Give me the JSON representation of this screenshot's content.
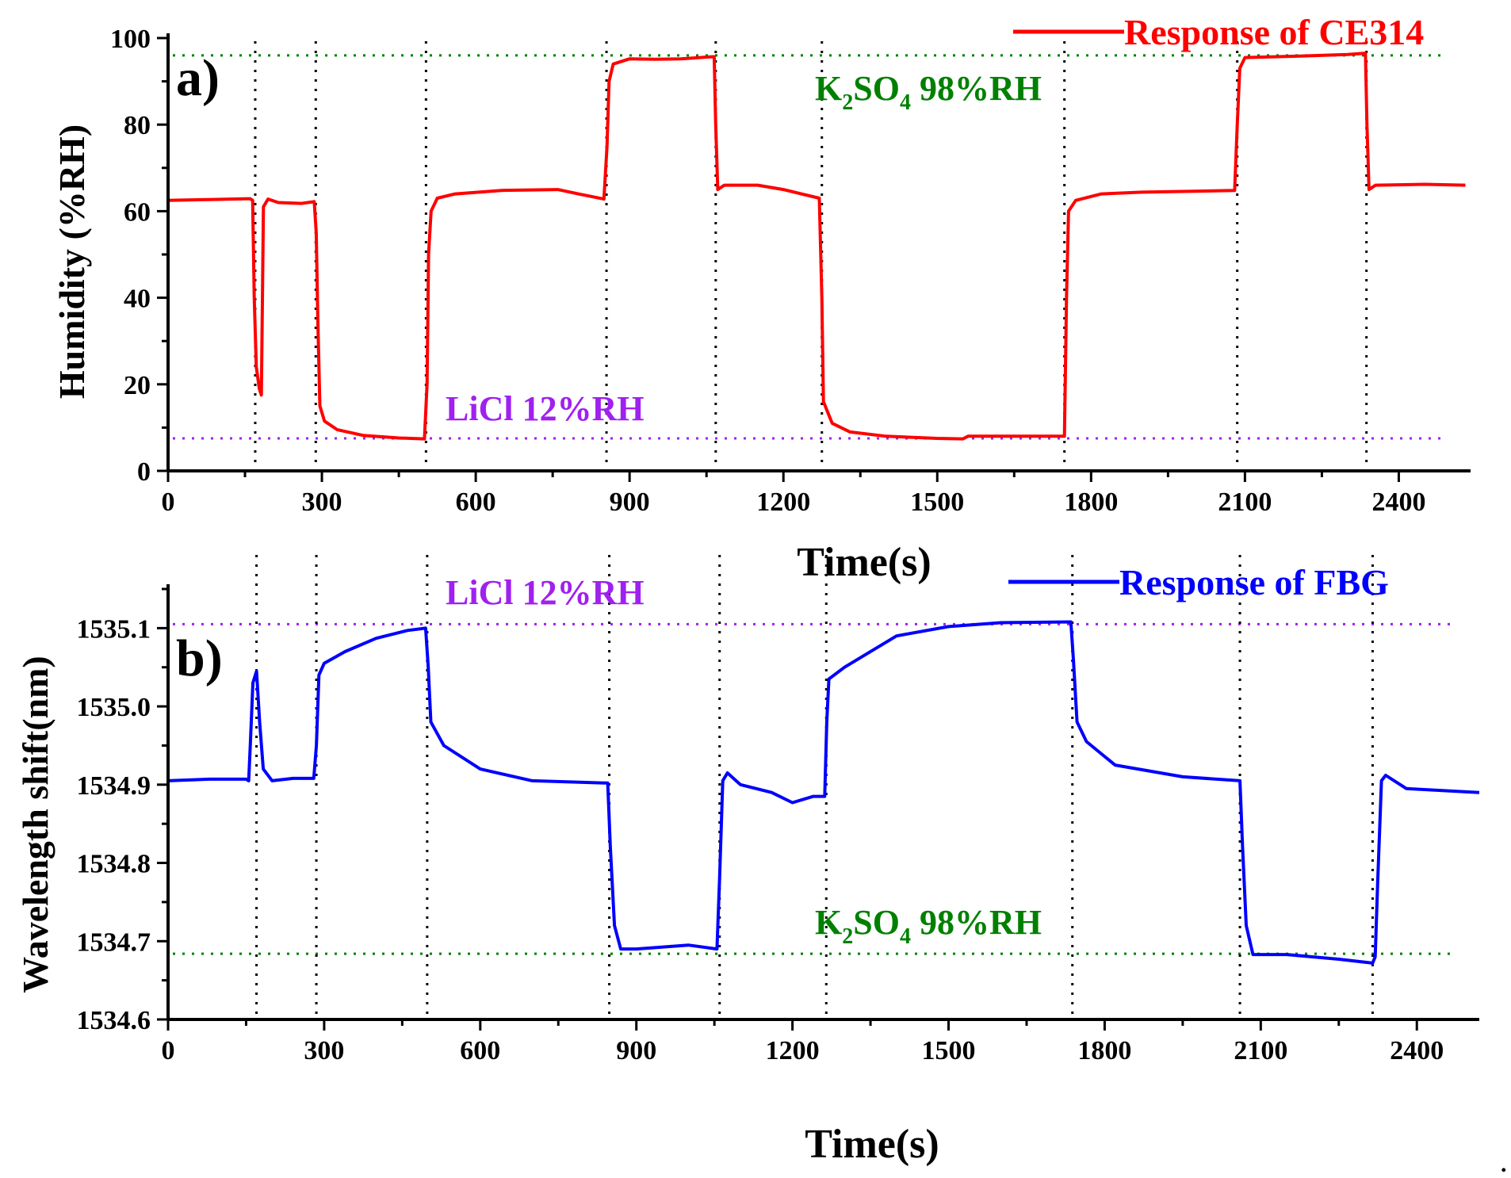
{
  "colors": {
    "ce314": "#ff0000",
    "fbg": "#0000ff",
    "k2so4": "#008000",
    "licl": "#a020f0",
    "axis": "#000000"
  },
  "chart_data": [
    {
      "type": "line",
      "panel_label": "a)",
      "xlabel": "Time(s)",
      "ylabel": "Humidity (%RH)",
      "xlim": [
        0,
        2540
      ],
      "ylim": [
        0,
        100
      ],
      "x_ticks": [
        0,
        300,
        600,
        900,
        1200,
        1500,
        1800,
        2100,
        2400
      ],
      "y_ticks": [
        0,
        20,
        40,
        60,
        80,
        100
      ],
      "legend": "Response of CE314",
      "annotations": [
        {
          "text_main": "K",
          "text_sub": "2",
          "text_main2": "SO",
          "text_sub2": "4",
          "text_tail": " 98%RH",
          "color": "k2so4"
        },
        {
          "text": "LiCl 12%RH",
          "color": "licl"
        }
      ],
      "reference_lines": [
        {
          "y": 96,
          "color": "k2so4",
          "label": "K2SO4 98%RH"
        },
        {
          "y": 7.5,
          "color": "licl",
          "label": "LiCl 12%RH"
        }
      ],
      "event_times": [
        170,
        288,
        503,
        855,
        1068,
        1275,
        1748,
        2085,
        2337
      ],
      "series": [
        {
          "name": "Response of CE314",
          "color": "ce314",
          "points": [
            [
              0,
              62.5
            ],
            [
              80,
              62.7
            ],
            [
              160,
              62.9
            ],
            [
              165,
              62.5
            ],
            [
              168,
              40
            ],
            [
              172,
              24
            ],
            [
              178,
              19
            ],
            [
              182,
              17.5
            ],
            [
              186,
              61
            ],
            [
              195,
              62.8
            ],
            [
              215,
              62
            ],
            [
              260,
              61.8
            ],
            [
              285,
              62.2
            ],
            [
              289,
              55
            ],
            [
              292,
              35
            ],
            [
              296,
              15
            ],
            [
              305,
              11.5
            ],
            [
              330,
              9.5
            ],
            [
              380,
              8.2
            ],
            [
              450,
              7.6
            ],
            [
              500,
              7.4
            ],
            [
              505,
              20
            ],
            [
              508,
              50
            ],
            [
              513,
              60
            ],
            [
              525,
              63
            ],
            [
              560,
              64
            ],
            [
              650,
              64.8
            ],
            [
              760,
              65
            ],
            [
              800,
              64
            ],
            [
              850,
              62.8
            ],
            [
              856,
              75
            ],
            [
              860,
              90
            ],
            [
              868,
              94
            ],
            [
              900,
              95.2
            ],
            [
              950,
              95.1
            ],
            [
              1000,
              95.2
            ],
            [
              1050,
              95.6
            ],
            [
              1065,
              95.7
            ],
            [
              1068,
              80
            ],
            [
              1072,
              65
            ],
            [
              1085,
              66
            ],
            [
              1150,
              66
            ],
            [
              1200,
              65
            ],
            [
              1270,
              63
            ],
            [
              1275,
              40
            ],
            [
              1278,
              16
            ],
            [
              1295,
              11
            ],
            [
              1330,
              9
            ],
            [
              1400,
              8
            ],
            [
              1500,
              7.5
            ],
            [
              1550,
              7.4
            ],
            [
              1560,
              8
            ],
            [
              1740,
              8
            ],
            [
              1748,
              8
            ],
            [
              1752,
              40
            ],
            [
              1756,
              60
            ],
            [
              1770,
              62.5
            ],
            [
              1820,
              64
            ],
            [
              1900,
              64.4
            ],
            [
              2000,
              64.6
            ],
            [
              2080,
              64.8
            ],
            [
              2085,
              80
            ],
            [
              2090,
              93
            ],
            [
              2100,
              95.5
            ],
            [
              2200,
              95.8
            ],
            [
              2300,
              96.2
            ],
            [
              2335,
              96.5
            ],
            [
              2338,
              80
            ],
            [
              2342,
              65
            ],
            [
              2355,
              66
            ],
            [
              2450,
              66.2
            ],
            [
              2530,
              66
            ]
          ]
        }
      ]
    },
    {
      "type": "line",
      "panel_label": "b)",
      "xlabel": "Time(s)",
      "ylabel": "Wavelength shift(nm)",
      "xlim": [
        0,
        2520
      ],
      "ylim": [
        1534.6,
        1535.15
      ],
      "x_ticks": [
        0,
        300,
        600,
        900,
        1200,
        1500,
        1800,
        2100,
        2400
      ],
      "y_ticks": [
        1534.6,
        1534.7,
        1534.8,
        1534.9,
        1535.0,
        1535.1
      ],
      "y_tick_labels": [
        "1534.6",
        "1534.7",
        "1534.8",
        "1534.9",
        "1535.0",
        "1535.1"
      ],
      "legend": "Response of FBG",
      "annotations": [
        {
          "text": "LiCl 12%RH",
          "color": "licl"
        },
        {
          "text_main": "K",
          "text_sub": "2",
          "text_main2": "SO",
          "text_sub2": "4",
          "text_tail": " 98%RH",
          "color": "k2so4"
        }
      ],
      "reference_lines": [
        {
          "y": 1535.105,
          "color": "licl",
          "label": "LiCl 12%RH"
        },
        {
          "y": 1534.684,
          "color": "k2so4",
          "label": "K2SO4 98%RH"
        }
      ],
      "event_times": [
        170,
        285,
        498,
        848,
        1060,
        1265,
        1738,
        2060,
        2315
      ],
      "series": [
        {
          "name": "Response of FBG",
          "color": "fbg",
          "points": [
            [
              0,
              1534.905
            ],
            [
              80,
              1534.907
            ],
            [
              150,
              1534.907
            ],
            [
              155,
              1534.905
            ],
            [
              158,
              1534.95
            ],
            [
              163,
              1535.03
            ],
            [
              170,
              1535.045
            ],
            [
              176,
              1534.98
            ],
            [
              183,
              1534.92
            ],
            [
              200,
              1534.905
            ],
            [
              240,
              1534.908
            ],
            [
              280,
              1534.908
            ],
            [
              285,
              1534.95
            ],
            [
              290,
              1535.04
            ],
            [
              300,
              1535.055
            ],
            [
              340,
              1535.07
            ],
            [
              400,
              1535.087
            ],
            [
              460,
              1535.097
            ],
            [
              495,
              1535.1
            ],
            [
              500,
              1535.05
            ],
            [
              505,
              1534.98
            ],
            [
              530,
              1534.95
            ],
            [
              600,
              1534.92
            ],
            [
              700,
              1534.905
            ],
            [
              845,
              1534.902
            ],
            [
              850,
              1534.82
            ],
            [
              858,
              1534.72
            ],
            [
              870,
              1534.69
            ],
            [
              900,
              1534.69
            ],
            [
              1000,
              1534.695
            ],
            [
              1055,
              1534.69
            ],
            [
              1060,
              1534.78
            ],
            [
              1066,
              1534.905
            ],
            [
              1075,
              1534.915
            ],
            [
              1100,
              1534.9
            ],
            [
              1160,
              1534.89
            ],
            [
              1200,
              1534.877
            ],
            [
              1240,
              1534.885
            ],
            [
              1262,
              1534.885
            ],
            [
              1266,
              1534.98
            ],
            [
              1270,
              1535.035
            ],
            [
              1300,
              1535.05
            ],
            [
              1400,
              1535.09
            ],
            [
              1500,
              1535.102
            ],
            [
              1600,
              1535.107
            ],
            [
              1735,
              1535.108
            ],
            [
              1740,
              1535.06
            ],
            [
              1747,
              1534.98
            ],
            [
              1765,
              1534.955
            ],
            [
              1820,
              1534.925
            ],
            [
              1950,
              1534.91
            ],
            [
              2060,
              1534.905
            ],
            [
              2065,
              1534.82
            ],
            [
              2072,
              1534.72
            ],
            [
              2085,
              1534.683
            ],
            [
              2150,
              1534.683
            ],
            [
              2250,
              1534.677
            ],
            [
              2315,
              1534.672
            ],
            [
              2320,
              1534.68
            ],
            [
              2325,
              1534.78
            ],
            [
              2332,
              1534.905
            ],
            [
              2340,
              1534.912
            ],
            [
              2380,
              1534.895
            ],
            [
              2520,
              1534.89
            ]
          ]
        }
      ]
    }
  ],
  "corner_mark": "."
}
